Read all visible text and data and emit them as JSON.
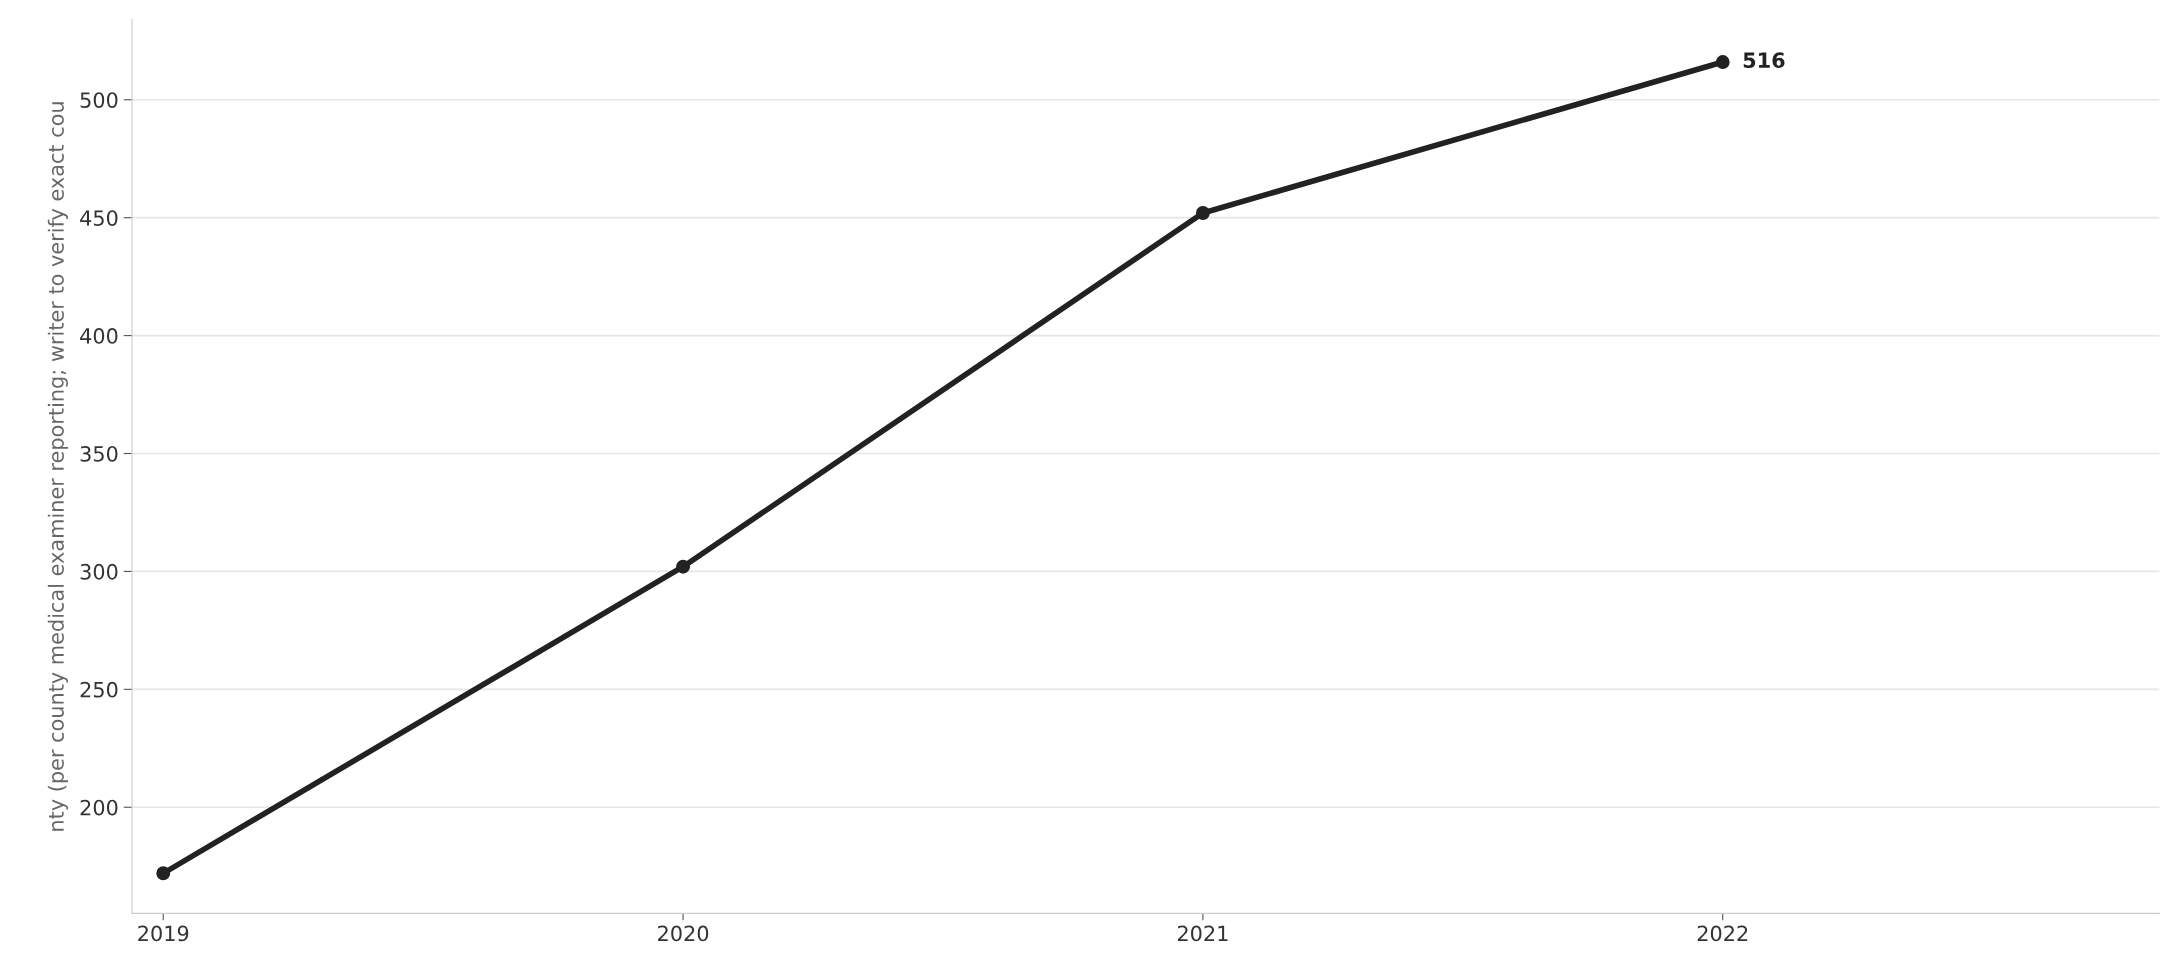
{
  "chart_data": {
    "type": "line",
    "ylabel": "nty (per county medical examiner reporting; writer to verify exact cou",
    "x": [
      2019,
      2020,
      2021,
      2022
    ],
    "series": [
      {
        "color": "#222222",
        "values": [
          172,
          302,
          452,
          516
        ],
        "value_labels": [
          null,
          null,
          null,
          "516"
        ]
      }
    ],
    "xlim": [
      2018.94,
      2022.84
    ],
    "xticks": [
      2019,
      2020,
      2021,
      2022
    ],
    "ylim": [
      155,
      534
    ],
    "yticks": [
      200,
      250,
      300,
      350,
      400,
      450,
      500
    ],
    "grid": "y",
    "marker": "circle",
    "line_style": "solid",
    "legend": false
  }
}
